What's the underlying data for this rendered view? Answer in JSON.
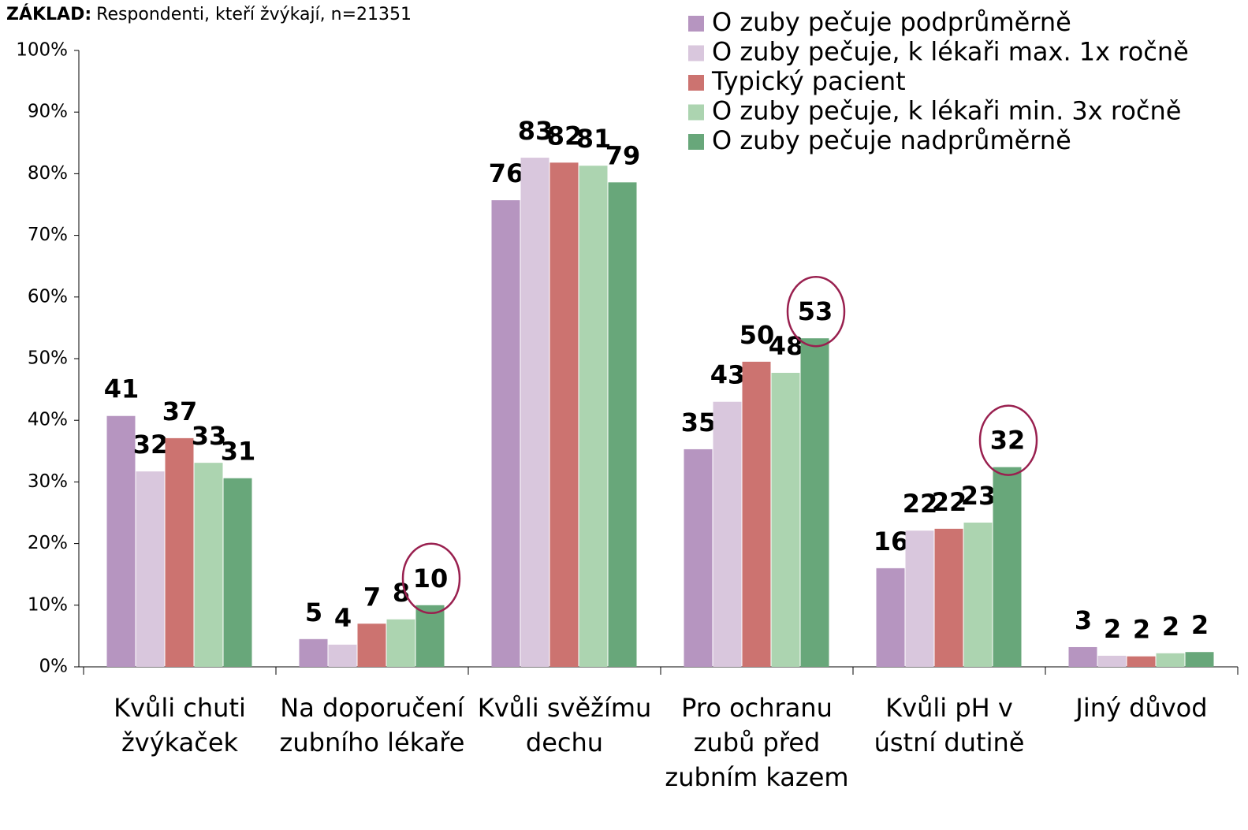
{
  "chart_data": {
    "type": "bar",
    "subtitle_label": "ZÁKLAD:",
    "subtitle": "Respondenti, kteří žvýkají, n=21351",
    "categories": [
      "Kvůli chuti žvýkaček",
      "Na doporučení zubního lékaře",
      "Kvůli svěžímu dechu",
      "Pro ochranu zubů před zubním kazem",
      "Kvůli pH v ústní dutině",
      "Jiný důvod"
    ],
    "series": [
      {
        "name": "O zuby pečuje podprůměrně",
        "color": "#b695c0",
        "values": [
          40.7,
          4.5,
          75.7,
          35.3,
          16.0,
          3.2
        ],
        "value_labels": [
          "41",
          "5",
          "76",
          "35",
          "16",
          "3"
        ]
      },
      {
        "name": "O zuby pečuje, k lékaři max. 1x ročně",
        "color": "#d9c7dd",
        "values": [
          31.7,
          3.6,
          82.6,
          43.0,
          22.1,
          1.8
        ],
        "value_labels": [
          "32",
          "4",
          "83",
          "43",
          "22",
          "2"
        ]
      },
      {
        "name": "Typický pacient",
        "color": "#cc7370",
        "values": [
          37.1,
          7.0,
          81.8,
          49.5,
          22.4,
          1.7
        ],
        "value_labels": [
          "37",
          "7",
          "82",
          "50",
          "22",
          "2"
        ]
      },
      {
        "name": "O zuby pečuje, k lékaři min. 3x ročně",
        "color": "#acd4b0",
        "values": [
          33.1,
          7.7,
          81.3,
          47.7,
          23.4,
          2.2
        ],
        "value_labels": [
          "33",
          "8",
          "81",
          "48",
          "23",
          "2"
        ]
      },
      {
        "name": "O zuby pečuje nadprůměrně",
        "color": "#68a77a",
        "values": [
          30.6,
          10.0,
          78.6,
          53.3,
          32.4,
          2.4
        ],
        "value_labels": [
          "31",
          "10",
          "79",
          "53",
          "32",
          "2"
        ]
      }
    ],
    "ylim": [
      0,
      100
    ],
    "yticks": [
      {
        "value": 0,
        "label": "0%"
      },
      {
        "value": 10,
        "label": "10%"
      },
      {
        "value": 20,
        "label": "20%"
      },
      {
        "value": 30,
        "label": "30%"
      },
      {
        "value": 40,
        "label": "40%"
      },
      {
        "value": 50,
        "label": "50%"
      },
      {
        "value": 60,
        "label": "60%"
      },
      {
        "value": 70,
        "label": "70%"
      },
      {
        "value": 80,
        "label": "80%"
      },
      {
        "value": 90,
        "label": "90%"
      },
      {
        "value": 100,
        "label": "100%"
      }
    ],
    "legend": "top-right"
  }
}
